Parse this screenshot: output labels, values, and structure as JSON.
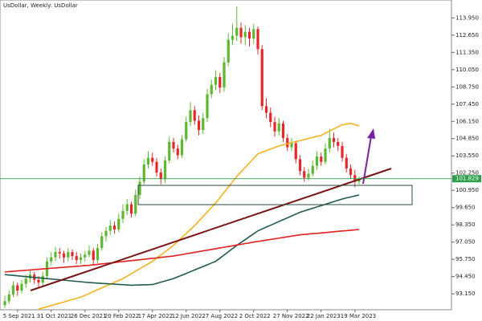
{
  "chart_data": {
    "type": "candlestick",
    "title": "UsDollar, Weekly: UsDollar",
    "categories": [
      null,
      null,
      null,
      "5 Sep 2021",
      null,
      null,
      null,
      null,
      null,
      null,
      null,
      "31 Oct 2021",
      null,
      null,
      null,
      null,
      null,
      null,
      null,
      "26 Dec 2021",
      null,
      null,
      null,
      null,
      null,
      null,
      null,
      "20 Feb 2022",
      null,
      null,
      null,
      null,
      null,
      null,
      null,
      "17 Apr 2022",
      null,
      null,
      null,
      null,
      null,
      null,
      null,
      "12 Jun 2022",
      null,
      null,
      null,
      null,
      null,
      null,
      null,
      "7 Aug 2022",
      null,
      null,
      null,
      null,
      null,
      null,
      null,
      "2 Oct 2022",
      null,
      null,
      null,
      null,
      null,
      null,
      null,
      "27 Nov 2022",
      null,
      null,
      null,
      null,
      null,
      null,
      null,
      "22 Jan 2023",
      null,
      null,
      null,
      null,
      null,
      null,
      null,
      "19 Mar 2023",
      null
    ],
    "ohlc": [
      [
        92.3,
        93.0,
        92.1,
        92.6
      ],
      [
        92.6,
        93.4,
        92.4,
        93.1
      ],
      [
        93.1,
        94.1,
        92.9,
        93.8
      ],
      [
        93.8,
        94.0,
        93.0,
        93.4
      ],
      [
        93.4,
        94.2,
        93.2,
        93.9
      ],
      [
        93.9,
        94.6,
        93.6,
        94.3
      ],
      [
        94.3,
        94.9,
        94.0,
        94.6
      ],
      [
        94.6,
        94.8,
        93.9,
        94.2
      ],
      [
        94.2,
        94.5,
        93.7,
        94.0
      ],
      [
        94.0,
        94.8,
        93.8,
        94.5
      ],
      [
        94.5,
        95.9,
        94.3,
        95.6
      ],
      [
        95.6,
        96.3,
        95.3,
        95.9
      ],
      [
        95.9,
        96.7,
        95.6,
        96.3
      ],
      [
        96.3,
        96.6,
        95.8,
        96.2
      ],
      [
        96.2,
        96.4,
        95.5,
        95.9
      ],
      [
        95.9,
        96.6,
        95.6,
        96.3
      ],
      [
        96.3,
        96.5,
        95.7,
        96.0
      ],
      [
        96.0,
        96.3,
        95.4,
        95.7
      ],
      [
        95.7,
        96.2,
        95.4,
        95.9
      ],
      [
        95.9,
        96.4,
        95.6,
        96.1
      ],
      [
        96.1,
        96.8,
        95.9,
        96.4
      ],
      [
        96.4,
        96.6,
        95.3,
        95.7
      ],
      [
        95.7,
        96.9,
        95.5,
        96.6
      ],
      [
        96.6,
        97.8,
        96.4,
        97.5
      ],
      [
        97.5,
        98.2,
        97.1,
        97.9
      ],
      [
        97.9,
        98.7,
        97.6,
        98.3
      ],
      [
        98.3,
        98.6,
        97.7,
        98.0
      ],
      [
        98.0,
        99.2,
        97.8,
        98.8
      ],
      [
        98.8,
        99.9,
        98.5,
        99.4
      ],
      [
        99.4,
        100.3,
        99.1,
        99.9
      ],
      [
        99.9,
        100.1,
        98.9,
        99.2
      ],
      [
        99.2,
        101.0,
        99.0,
        100.6
      ],
      [
        100.6,
        102.0,
        100.3,
        101.6
      ],
      [
        101.6,
        103.3,
        101.4,
        102.9
      ],
      [
        102.9,
        103.9,
        102.6,
        103.4
      ],
      [
        103.4,
        103.8,
        102.8,
        103.1
      ],
      [
        103.1,
        103.4,
        102.0,
        102.3
      ],
      [
        102.3,
        102.6,
        101.4,
        101.8
      ],
      [
        101.8,
        103.5,
        101.5,
        103.2
      ],
      [
        103.2,
        105.0,
        103.0,
        104.6
      ],
      [
        104.6,
        104.9,
        103.8,
        104.1
      ],
      [
        104.1,
        104.4,
        103.3,
        103.6
      ],
      [
        103.6,
        105.1,
        103.4,
        104.8
      ],
      [
        104.8,
        106.5,
        104.6,
        106.1
      ],
      [
        106.1,
        107.6,
        105.8,
        107.0
      ],
      [
        107.0,
        107.3,
        105.9,
        106.2
      ],
      [
        106.2,
        106.6,
        105.1,
        105.5
      ],
      [
        105.5,
        106.8,
        105.2,
        106.4
      ],
      [
        106.4,
        108.6,
        106.1,
        108.2
      ],
      [
        108.2,
        109.3,
        107.9,
        108.9
      ],
      [
        108.9,
        110.0,
        108.5,
        109.5
      ],
      [
        109.5,
        109.8,
        108.3,
        108.7
      ],
      [
        108.7,
        111.0,
        108.4,
        110.6
      ],
      [
        110.6,
        112.8,
        110.3,
        112.3
      ],
      [
        112.3,
        113.5,
        111.9,
        112.6
      ],
      [
        112.6,
        114.8,
        112.2,
        113.2
      ],
      [
        113.2,
        113.6,
        112.0,
        112.5
      ],
      [
        112.5,
        113.4,
        111.9,
        112.9
      ],
      [
        112.9,
        113.2,
        111.8,
        112.4
      ],
      [
        112.4,
        113.5,
        112.0,
        113.1
      ],
      [
        113.1,
        113.3,
        111.2,
        111.6
      ],
      [
        111.6,
        111.9,
        107.0,
        107.3
      ],
      [
        107.3,
        107.9,
        106.4,
        106.8
      ],
      [
        106.8,
        107.2,
        105.7,
        106.1
      ],
      [
        106.1,
        106.5,
        105.0,
        105.4
      ],
      [
        105.4,
        106.4,
        105.1,
        106.0
      ],
      [
        106.0,
        106.2,
        104.6,
        104.9
      ],
      [
        104.9,
        105.2,
        103.9,
        104.2
      ],
      [
        104.2,
        104.9,
        103.9,
        104.5
      ],
      [
        104.5,
        104.7,
        103.0,
        103.3
      ],
      [
        103.3,
        103.6,
        102.1,
        102.4
      ],
      [
        102.4,
        102.7,
        101.6,
        101.9
      ],
      [
        101.9,
        102.6,
        101.7,
        102.2
      ],
      [
        102.2,
        103.2,
        102.0,
        102.8
      ],
      [
        102.8,
        103.9,
        102.5,
        103.5
      ],
      [
        103.5,
        103.8,
        102.8,
        103.1
      ],
      [
        103.1,
        104.5,
        102.9,
        104.1
      ],
      [
        104.1,
        105.6,
        103.8,
        104.9
      ],
      [
        104.9,
        105.3,
        104.2,
        104.6
      ],
      [
        104.6,
        104.9,
        103.9,
        104.3
      ],
      [
        104.3,
        104.6,
        103.1,
        103.4
      ],
      [
        103.4,
        103.7,
        102.3,
        102.6
      ],
      [
        102.6,
        102.9,
        101.8,
        102.1
      ],
      [
        102.1,
        102.5,
        101.2,
        101.6
      ],
      [
        101.6,
        102.0,
        101.4,
        101.83
      ]
    ],
    "up_color": "#5cb82e",
    "down_color": "#e8262a",
    "series": [
      {
        "color": "#f5b21f",
        "values": [
          null,
          null,
          null,
          null,
          null,
          null,
          null,
          null,
          92.0,
          92.09,
          92.18,
          92.27,
          92.36,
          92.45,
          92.54,
          92.63,
          92.72,
          92.81,
          92.9,
          93.04,
          93.18,
          93.32,
          93.46,
          93.6,
          93.74,
          93.88,
          94.02,
          94.16,
          94.3,
          94.49,
          94.67,
          94.86,
          95.04,
          95.23,
          95.41,
          95.6,
          95.84,
          96.08,
          96.32,
          96.56,
          96.8,
          97.1,
          97.4,
          97.7,
          98.0,
          98.3,
          98.64,
          98.98,
          99.32,
          99.66,
          100.0,
          100.4,
          100.8,
          101.2,
          101.6,
          102.0,
          102.34,
          102.68,
          103.02,
          103.36,
          103.7,
          103.82,
          103.94,
          104.06,
          104.18,
          104.3,
          104.38,
          104.46,
          104.54,
          104.62,
          104.7,
          104.78,
          104.86,
          104.94,
          105.02,
          105.1,
          105.26,
          105.42,
          105.58,
          105.74,
          105.9,
          105.95,
          106.0,
          105.9,
          105.8
        ]
      },
      {
        "color": "#1f5a4f",
        "values": [
          94.6,
          94.57,
          94.54,
          94.51,
          94.48,
          94.45,
          94.42,
          94.39,
          94.36,
          94.33,
          94.3,
          94.27,
          94.24,
          94.21,
          94.18,
          94.15,
          94.12,
          94.09,
          94.06,
          94.03,
          94.0,
          93.98,
          93.96,
          93.94,
          93.92,
          93.9,
          93.88,
          93.86,
          93.84,
          93.82,
          93.8,
          93.81,
          93.82,
          93.83,
          93.84,
          93.85,
          93.94,
          94.03,
          94.12,
          94.21,
          94.3,
          94.43,
          94.56,
          94.69,
          94.82,
          94.95,
          95.08,
          95.21,
          95.34,
          95.47,
          95.6,
          95.84,
          96.08,
          96.32,
          96.56,
          96.8,
          97.02,
          97.24,
          97.46,
          97.68,
          97.9,
          98.04,
          98.18,
          98.32,
          98.46,
          98.6,
          98.74,
          98.88,
          99.02,
          99.16,
          99.3,
          99.4,
          99.5,
          99.6,
          99.7,
          99.8,
          99.9,
          100.0,
          100.1,
          100.2,
          100.3,
          100.38,
          100.45,
          100.53,
          100.6
        ]
      },
      {
        "color": "#e0201c",
        "values": [
          94.8,
          94.83,
          94.85,
          94.88,
          94.9,
          94.93,
          94.95,
          94.98,
          95.0,
          95.03,
          95.05,
          95.08,
          95.1,
          95.13,
          95.15,
          95.18,
          95.2,
          95.23,
          95.25,
          95.28,
          95.3,
          95.34,
          95.37,
          95.41,
          95.44,
          95.48,
          95.51,
          95.55,
          95.58,
          95.62,
          95.65,
          95.69,
          95.72,
          95.76,
          95.79,
          95.83,
          95.86,
          95.9,
          95.93,
          95.97,
          96.0,
          96.06,
          96.11,
          96.17,
          96.22,
          96.28,
          96.33,
          96.39,
          96.44,
          96.5,
          96.55,
          96.61,
          96.66,
          96.72,
          96.77,
          96.83,
          96.88,
          96.94,
          96.99,
          97.05,
          97.1,
          97.15,
          97.2,
          97.25,
          97.3,
          97.35,
          97.4,
          97.45,
          97.5,
          97.55,
          97.6,
          97.63,
          97.66,
          97.69,
          97.71,
          97.74,
          97.77,
          97.8,
          97.83,
          97.86,
          97.89,
          97.91,
          97.94,
          97.97,
          98.0
        ]
      }
    ],
    "current_price": 101.829,
    "current_price_color": "#2e9e4a",
    "ylim": [
      91.95,
      115.3
    ],
    "yticks": [
      {
        "value": 93.15,
        "label": "93.150"
      },
      {
        "value": 94.45,
        "label": "94.450"
      },
      {
        "value": 95.75,
        "label": "95.750"
      },
      {
        "value": 97.05,
        "label": "97.050"
      },
      {
        "value": 98.35,
        "label": "98.350"
      },
      {
        "value": 99.65,
        "label": "99.650"
      },
      {
        "value": 100.95,
        "label": "100.950"
      },
      {
        "value": 102.25,
        "label": "102.250"
      },
      {
        "value": 103.55,
        "label": "103.550"
      },
      {
        "value": 104.85,
        "label": "104.850"
      },
      {
        "value": 106.15,
        "label": "106.150"
      },
      {
        "value": 107.45,
        "label": "107.450"
      },
      {
        "value": 108.75,
        "label": "108.750"
      },
      {
        "value": 110.05,
        "label": "110.050"
      },
      {
        "value": 111.35,
        "label": "111.350"
      },
      {
        "value": 112.65,
        "label": "112.650"
      },
      {
        "value": 113.95,
        "label": "113.950"
      }
    ]
  }
}
